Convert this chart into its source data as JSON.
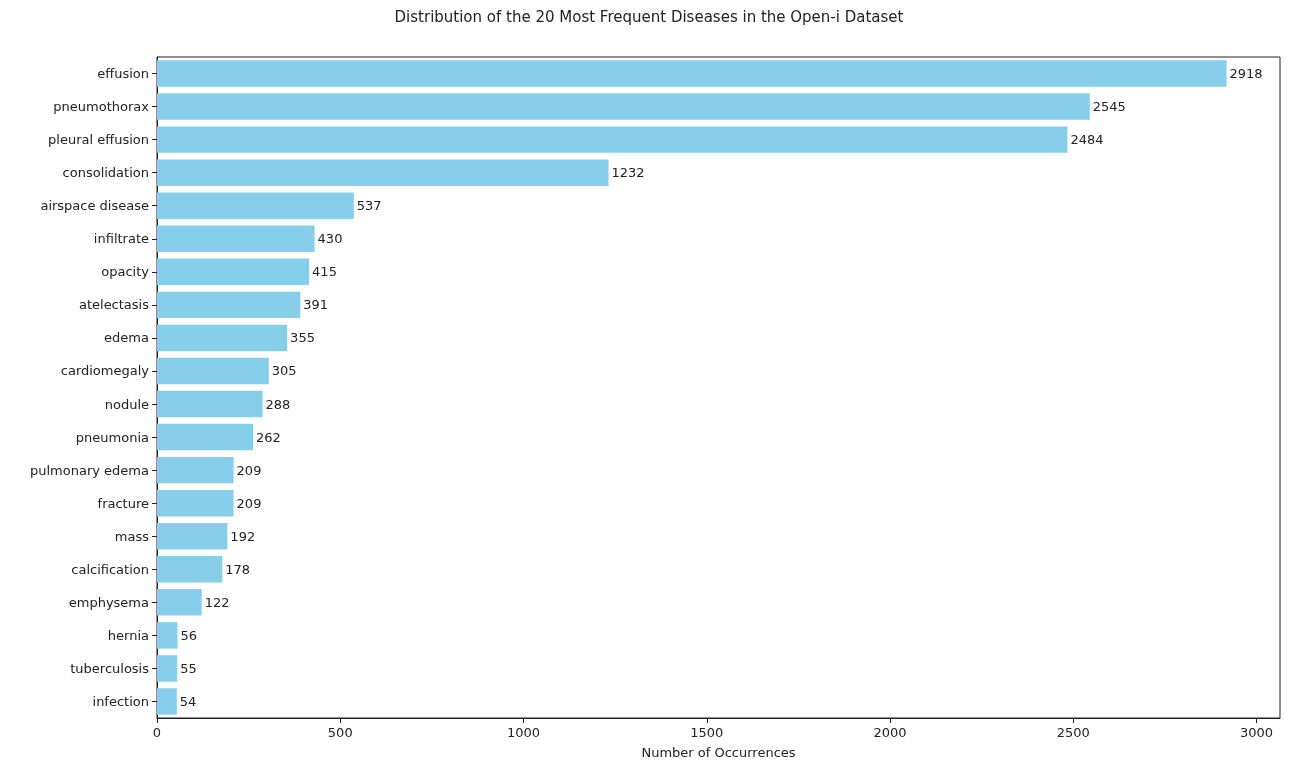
{
  "chart_data": {
    "type": "bar",
    "orientation": "horizontal",
    "title": "Distribution of the 20 Most Frequent Diseases in the Open-i Dataset",
    "xlabel": "Number of Occurrences",
    "categories": [
      "effusion",
      "pneumothorax",
      "pleural effusion",
      "consolidation",
      "airspace disease",
      "infiltrate",
      "opacity",
      "atelectasis",
      "edema",
      "cardiomegaly",
      "nodule",
      "pneumonia",
      "pulmonary edema",
      "fracture",
      "mass",
      "calcification",
      "emphysema",
      "hernia",
      "tuberculosis",
      "infection"
    ],
    "values": [
      2918,
      2545,
      2484,
      1232,
      537,
      430,
      415,
      391,
      355,
      305,
      288,
      262,
      209,
      209,
      192,
      178,
      122,
      56,
      55,
      54
    ],
    "color": "#87ceeb",
    "xlim": [
      0,
      3064
    ],
    "xticks": [
      0,
      500,
      1000,
      1500,
      2000,
      2500,
      3000
    ],
    "data_labels": true,
    "grid": false
  }
}
